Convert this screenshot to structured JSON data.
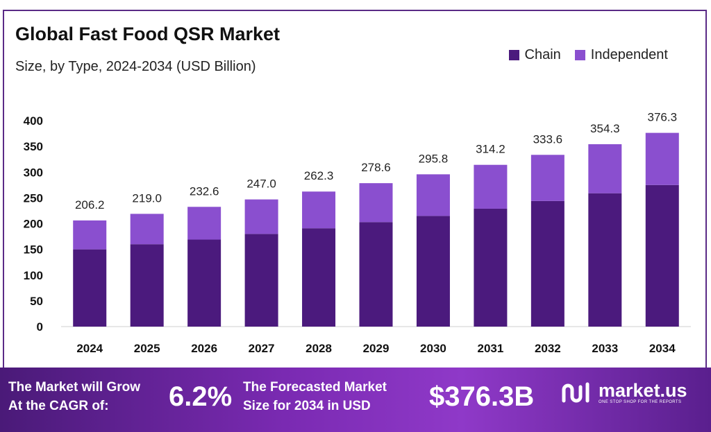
{
  "header": {
    "title": "Global Fast Food QSR Market",
    "subtitle": "Size, by Type, 2024-2034 (USD Billion)"
  },
  "legend": [
    {
      "label": "Chain",
      "color": "#4b1a7d"
    },
    {
      "label": "Independent",
      "color": "#8a4fcf"
    }
  ],
  "chart_data": {
    "type": "bar",
    "stacked": true,
    "categories": [
      "2024",
      "2025",
      "2026",
      "2027",
      "2028",
      "2029",
      "2030",
      "2031",
      "2032",
      "2033",
      "2034"
    ],
    "series": [
      {
        "name": "Chain",
        "color": "#4b1a7d",
        "values": [
          150,
          160,
          169,
          180,
          191,
          203,
          215,
          229,
          244,
          259,
          275
        ]
      },
      {
        "name": "Independent",
        "color": "#8a4fcf",
        "values": [
          56.2,
          59.0,
          63.6,
          67.0,
          71.3,
          75.6,
          80.8,
          85.2,
          89.6,
          95.3,
          101.3
        ]
      }
    ],
    "totals": [
      "206.2",
      "219.0",
      "232.6",
      "247.0",
      "262.3",
      "278.6",
      "295.8",
      "314.2",
      "333.6",
      "354.3",
      "376.3"
    ],
    "y_ticks": [
      "0",
      "50",
      "100",
      "150",
      "200",
      "250",
      "300",
      "350",
      "400"
    ],
    "ylim": [
      0,
      400
    ],
    "grid": false,
    "legend_position": "top-right"
  },
  "footer": {
    "cagr_line1": "The Market will Grow",
    "cagr_line2": "At the CAGR of:",
    "cagr_value": "6.2%",
    "forecast_line1": "The Forecasted Market",
    "forecast_line2": "Size for 2034 in USD",
    "forecast_value": "$376.3B",
    "brand_name": "market.us",
    "brand_tagline": "ONE STOP SHOP FOR THE REPORTS"
  }
}
